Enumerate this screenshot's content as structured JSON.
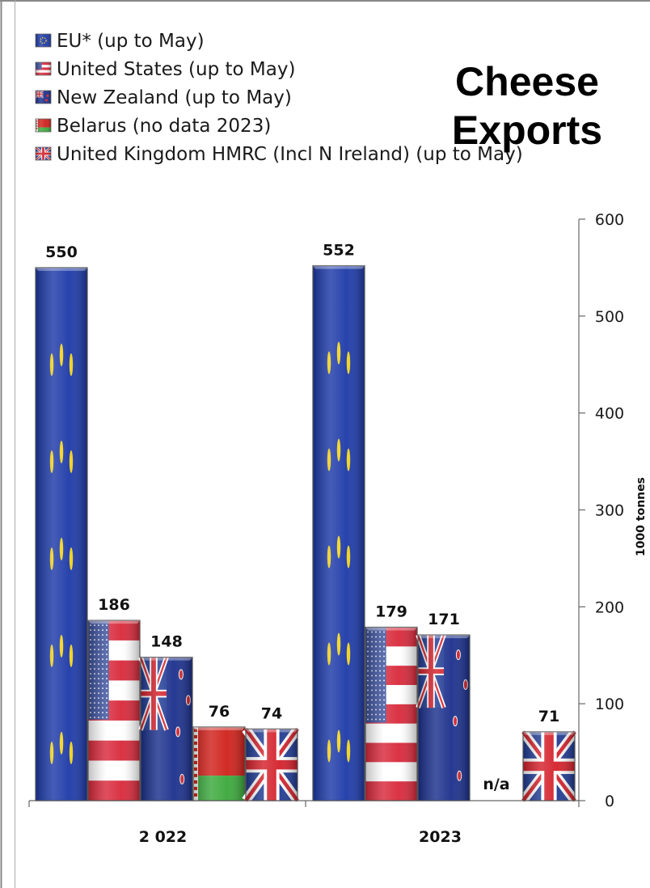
{
  "chart_data": {
    "type": "bar",
    "title": "Cheese Exports",
    "title_lines": [
      "Cheese",
      "Exports"
    ],
    "ylabel": "1000 tonnes",
    "xlabel": "",
    "ylim": [
      0,
      600
    ],
    "yticks": [
      0,
      100,
      200,
      300,
      400,
      500,
      600
    ],
    "yaxis_position": "right",
    "legend_placement": "top-left",
    "grid": false,
    "categories": [
      "2 022",
      "2023"
    ],
    "series": [
      {
        "name": "EU* (up to May)",
        "flag": "eu-flag",
        "values": [
          550,
          552
        ],
        "labels": [
          "550",
          "552"
        ]
      },
      {
        "name": "United States (up to May)",
        "flag": "us-flag",
        "values": [
          186,
          179
        ],
        "labels": [
          "186",
          "179"
        ]
      },
      {
        "name": "New Zealand (up to May)",
        "flag": "nz-flag",
        "values": [
          148,
          171
        ],
        "labels": [
          "148",
          "171"
        ]
      },
      {
        "name": "Belarus (no data 2023)",
        "flag": "belarus-flag",
        "values": [
          76,
          null
        ],
        "labels": [
          "76",
          "n/a"
        ]
      },
      {
        "name": "United Kingdom HMRC (Incl N Ireland) (up to May)",
        "flag": "uk-flag",
        "values": [
          74,
          71
        ],
        "labels": [
          "74",
          "71"
        ]
      }
    ],
    "colors": {
      "eu_blue": "#1c39a8",
      "eu_star": "#f2d21a",
      "us_red": "#d8283a",
      "us_blue": "#3a4f9c",
      "nz_blue": "#1a2f8c",
      "belarus_red": "#d0201a",
      "belarus_green": "#3aa83a",
      "uk_blue": "#1f3a93",
      "uk_red": "#d4202a"
    }
  }
}
